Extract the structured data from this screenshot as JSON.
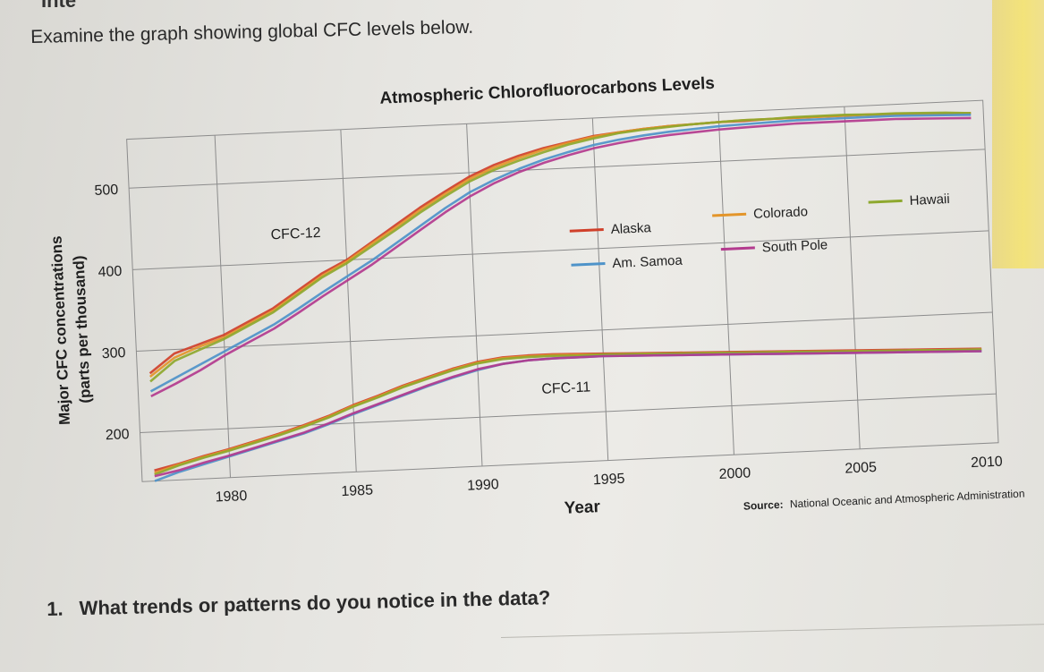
{
  "page": {
    "heading_fragment": "Inte",
    "prompt": "Examine the graph showing global CFC levels below.",
    "question_number": "1.",
    "question_text": "What trends or patterns do you notice in the data?"
  },
  "colors": {
    "Alaska": "#d0402a",
    "Colorado": "#e3952a",
    "Hawaii": "#8ea82e",
    "Am. Samoa": "#4e93c9",
    "South Pole": "#b33a8e",
    "grid": "#8c8c8c"
  },
  "chart_data": {
    "type": "line",
    "title": "Atmospheric Chlorofluorocarbons Levels",
    "xlabel": "Year",
    "ylabel": "Major CFC concentrations",
    "ylabel2": "(parts per thousand)",
    "source_label": "Source:",
    "source_text": "National Oceanic and Atmospheric Administration",
    "xlim": [
      1976.5,
      2010.5
    ],
    "ylim": [
      140,
      560
    ],
    "x_ticks": [
      1980,
      1985,
      1990,
      1995,
      2000,
      2005,
      2010
    ],
    "y_ticks": [
      200,
      300,
      400,
      500
    ],
    "legend": [
      "Alaska",
      "Colorado",
      "Hawaii",
      "Am. Samoa",
      "South Pole"
    ],
    "legend_position": "center-right",
    "grid": true,
    "groups": [
      {
        "label": "CFC-12",
        "x": [
          1977,
          1978,
          1979,
          1980,
          1981,
          1982,
          1983,
          1984,
          1985,
          1986,
          1987,
          1988,
          1989,
          1990,
          1991,
          1992,
          1993,
          1994,
          1995,
          1996,
          1997,
          1998,
          1999,
          2000,
          2001,
          2002,
          2003,
          2004,
          2005,
          2006,
          2007,
          2008,
          2009,
          2010
        ],
        "series": [
          {
            "name": "Alaska",
            "values": [
              272,
              295,
              305,
              315,
              330,
              345,
              365,
              385,
              400,
              420,
              440,
              460,
              478,
              495,
              508,
              518,
              526,
              532,
              538,
              541,
              544,
              546,
              547,
              548,
              548,
              549,
              549,
              549,
              549,
              549,
              548,
              547,
              546,
              545
            ]
          },
          {
            "name": "Colorado",
            "values": [
              268,
              290,
              302,
              312,
              327,
              342,
              362,
              382,
              398,
              418,
              437,
              457,
              475,
              492,
              505,
              515,
              524,
              531,
              537,
              541,
              544,
              546,
              547,
              548,
              549,
              549,
              549,
              549,
              549,
              549,
              548,
              547,
              546,
              545
            ]
          },
          {
            "name": "Hawaii",
            "values": [
              262,
              286,
              298,
              310,
              325,
              340,
              360,
              380,
              396,
              415,
              434,
              454,
              472,
              489,
              502,
              512,
              521,
              529,
              535,
              540,
              543,
              545,
              547,
              548,
              549,
              549,
              550,
              550,
              550,
              549,
              549,
              548,
              547,
              545
            ]
          },
          {
            "name": "Am. Samoa",
            "values": [
              250,
              265,
              280,
              295,
              310,
              325,
              343,
              362,
              380,
              398,
              418,
              438,
              458,
              476,
              490,
              502,
              512,
              520,
              527,
              532,
              536,
              539,
              541,
              543,
              544,
              545,
              546,
              546,
              546,
              546,
              546,
              545,
              544,
              543
            ]
          },
          {
            "name": "South Pole",
            "values": [
              244,
              258,
              273,
              290,
              305,
              320,
              338,
              357,
              375,
              393,
              413,
              433,
              453,
              471,
              486,
              498,
              508,
              516,
              523,
              528,
              532,
              535,
              537,
              539,
              540,
              541,
              542,
              542,
              542,
              542,
              542,
              541,
              540,
              539
            ]
          }
        ]
      },
      {
        "label": "CFC-11",
        "x": [
          1977,
          1978,
          1979,
          1980,
          1981,
          1982,
          1983,
          1984,
          1985,
          1986,
          1987,
          1988,
          1989,
          1990,
          1991,
          1992,
          1993,
          1994,
          1995,
          1996,
          1997,
          1998,
          1999,
          2000,
          2001,
          2002,
          2003,
          2004,
          2005,
          2006,
          2007,
          2008,
          2009,
          2010
        ],
        "series": [
          {
            "name": "Alaska",
            "values": [
              153,
              160,
              168,
              175,
              183,
              191,
              200,
              210,
              222,
              232,
              243,
              252,
              261,
              268,
              272,
              273,
              273,
              272,
              271,
              270,
              269,
              268,
              267,
              266,
              265,
              264,
              263,
              262,
              261,
              260,
              259,
              258,
              257,
              256
            ]
          },
          {
            "name": "Colorado",
            "values": [
              150,
              159,
              167,
              174,
              182,
              190,
              199,
              209,
              221,
              231,
              242,
              251,
              260,
              267,
              271,
              272,
              272,
              271,
              270,
              269,
              268,
              267,
              266,
              265,
              264,
              263,
              262,
              261,
              260,
              259,
              258,
              257,
              256,
              255
            ]
          },
          {
            "name": "Hawaii",
            "values": [
              148,
              158,
              166,
              173,
              181,
              189,
              198,
              208,
              220,
              230,
              241,
              250,
              259,
              266,
              270,
              271,
              271,
              270,
              270,
              269,
              268,
              267,
              266,
              265,
              264,
              263,
              262,
              261,
              260,
              259,
              258,
              257,
              256,
              255
            ]
          },
          {
            "name": "Am. Samoa",
            "values": [
              140,
              150,
              158,
              166,
              174,
              182,
              190,
              200,
              211,
              221,
              231,
              241,
              250,
              258,
              264,
              267,
              268,
              268,
              268,
              267,
              266,
              265,
              264,
              263,
              262,
              261,
              260,
              259,
              258,
              257,
              256,
              255,
              254,
              253
            ]
          },
          {
            "name": "South Pole",
            "values": [
              146,
              152,
              160,
              167,
              175,
              183,
              191,
              201,
              212,
              222,
              232,
              242,
              251,
              259,
              264,
              267,
              268,
              268,
              268,
              267,
              266,
              265,
              264,
              263,
              262,
              261,
              260,
              259,
              258,
              257,
              256,
              255,
              254,
              253
            ]
          }
        ]
      }
    ]
  }
}
